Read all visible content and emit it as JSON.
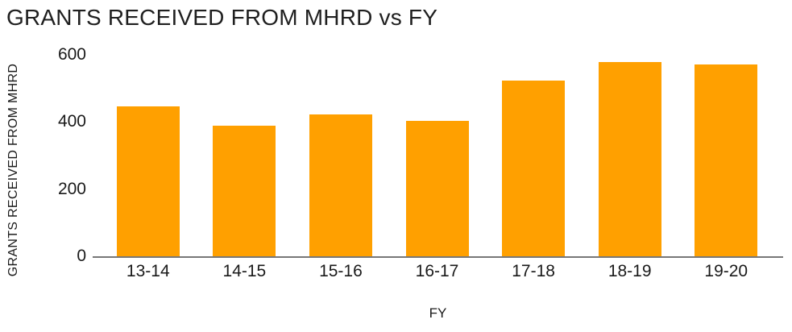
{
  "chart_data": {
    "type": "bar",
    "title": "GRANTS RECEIVED FROM MHRD vs FY",
    "xlabel": "FY",
    "ylabel": "GRANTS RECEIVED FROM MHRD",
    "categories": [
      "13-14",
      "14-15",
      "15-16",
      "16-17",
      "17-18",
      "18-19",
      "19-20"
    ],
    "values": [
      447,
      389,
      422,
      404,
      523,
      578,
      572
    ],
    "ylim": [
      0,
      600
    ],
    "yticks": [
      0,
      200,
      400,
      600
    ],
    "grid": false,
    "legend": false,
    "bar_color": "#FFA000",
    "axis_color": "#777777",
    "text_color": "#1a1a1a",
    "background": "#ffffff"
  }
}
